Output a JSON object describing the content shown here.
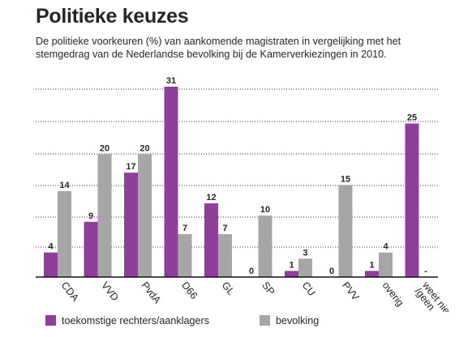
{
  "title": "Politieke keuzes",
  "subtitle": "De politieke voorkeuren (%) van aankomende magistraten in vergelijking met het stemgedrag van de Nederlandse bevolking bij de Kamerverkiezingen in 2010.",
  "colors": {
    "magistraten": "#8e3f98",
    "bevolking": "#a6a6a6",
    "grid": "#3c3c3c",
    "axis": "#111111"
  },
  "chart_data": {
    "type": "bar",
    "title": "Politieke keuzes",
    "categories": [
      "CDA",
      "VVD",
      "PvdA",
      "D66",
      "GL",
      "SP",
      "CU",
      "PVV",
      "overig",
      "weet niet /geen"
    ],
    "category_lines": [
      [
        "CDA"
      ],
      [
        "VVD"
      ],
      [
        "PvdA"
      ],
      [
        "D66"
      ],
      [
        "GL"
      ],
      [
        "SP"
      ],
      [
        "CU"
      ],
      [
        "PVV"
      ],
      [
        "overig"
      ],
      [
        "weet niet",
        "/geen"
      ]
    ],
    "series": [
      {
        "name": "toekomstige rechters/aanklagers",
        "values": [
          4,
          9,
          17,
          31,
          12,
          0,
          1,
          0,
          1,
          25
        ]
      },
      {
        "name": "bevolking",
        "values": [
          14,
          20,
          20,
          7,
          7,
          10,
          3,
          15,
          4,
          null
        ]
      }
    ],
    "data_labels": [
      [
        "4",
        "9",
        "17",
        "31",
        "12",
        "0",
        "1",
        "0",
        "1",
        "25"
      ],
      [
        "14",
        "20",
        "20",
        "7",
        "7",
        "10",
        "3",
        "15",
        "4",
        "-"
      ]
    ],
    "ylim": [
      0,
      31
    ],
    "grid": true,
    "legend_position": "bottom"
  }
}
